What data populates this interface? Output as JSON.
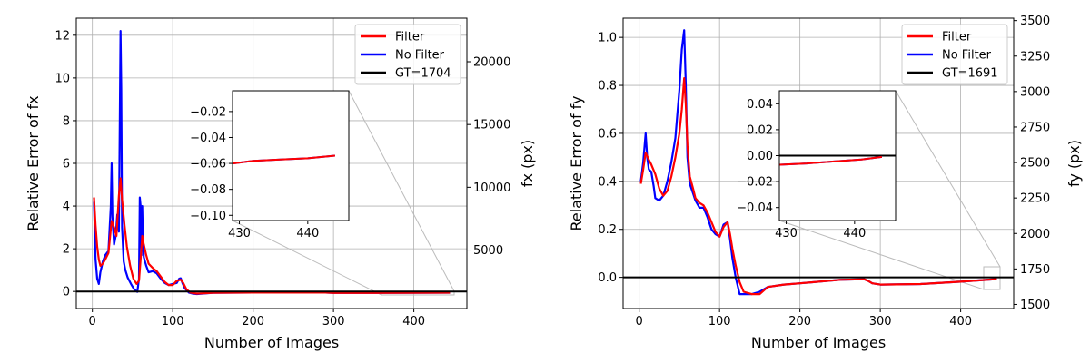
{
  "chart_data": [
    {
      "type": "line",
      "title": "",
      "xlabel": "Number of Images",
      "ylabel": "Relative Error of fx",
      "y2label": "fx (px)",
      "xlim": [
        -20,
        466
      ],
      "ylim": [
        -0.8,
        12.8
      ],
      "y2lim": [
        340,
        23470
      ],
      "xticks": [
        0,
        100,
        200,
        300,
        400
      ],
      "yticks": [
        0,
        2,
        4,
        6,
        8,
        10,
        12
      ],
      "y2ticks": [
        5000,
        10000,
        15000,
        20000
      ],
      "grid": true,
      "legend": "top-right",
      "gt_value": 0,
      "series": [
        {
          "name": "Filter",
          "color": "#ff0000",
          "x": [
            2,
            4,
            6,
            8,
            10,
            13,
            16,
            20,
            24,
            27,
            30,
            33,
            35,
            37,
            40,
            43,
            47,
            51,
            55,
            58,
            60,
            62,
            64,
            67,
            70,
            75,
            80,
            85,
            90,
            95,
            100,
            105,
            110,
            113,
            117,
            122,
            130,
            150,
            200,
            250,
            290,
            300,
            350,
            400,
            445
          ],
          "y": [
            4.4,
            3.1,
            2.1,
            1.5,
            1.2,
            1.3,
            1.5,
            1.8,
            3.3,
            3.0,
            2.6,
            4.5,
            5.3,
            4.3,
            3.1,
            2.1,
            1.2,
            0.6,
            0.35,
            0.5,
            1.5,
            2.6,
            2.2,
            1.7,
            1.3,
            1.1,
            0.95,
            0.7,
            0.45,
            0.3,
            0.3,
            0.5,
            0.55,
            0.4,
            0.1,
            -0.05,
            -0.1,
            -0.06,
            -0.05,
            -0.05,
            -0.05,
            -0.07,
            -0.07,
            -0.06,
            -0.055
          ]
        },
        {
          "name": "No Filter",
          "color": "#0000ff",
          "x": [
            2,
            4,
            6,
            8,
            10,
            13,
            16,
            20,
            23,
            24,
            25,
            27,
            29,
            31,
            33,
            35,
            36,
            37,
            39,
            41,
            44,
            48,
            52,
            56,
            58,
            59,
            60,
            61,
            62,
            63,
            64,
            67,
            70,
            75,
            80,
            85,
            90,
            95,
            100,
            105,
            108,
            110,
            112,
            115,
            120,
            125,
            130,
            150,
            200,
            250,
            290,
            300,
            350,
            400,
            445
          ],
          "y": [
            4.2,
            1.5,
            0.6,
            0.35,
            0.9,
            1.4,
            1.7,
            1.9,
            4.0,
            6.0,
            3.5,
            2.2,
            2.6,
            3.6,
            2.8,
            12.2,
            9.5,
            3.0,
            1.4,
            1.0,
            0.65,
            0.35,
            0.1,
            -0.02,
            0.6,
            4.4,
            4.0,
            1.7,
            4.0,
            2.4,
            1.6,
            1.2,
            0.9,
            0.95,
            0.85,
            0.6,
            0.4,
            0.3,
            0.35,
            0.4,
            0.6,
            0.62,
            0.4,
            0.15,
            -0.05,
            -0.1,
            -0.12,
            -0.06,
            -0.05,
            -0.05,
            -0.05,
            -0.07,
            -0.07,
            -0.06,
            -0.055
          ]
        },
        {
          "name": "GT=1704",
          "color": "#000000",
          "x": [
            -20,
            466
          ],
          "y": [
            0,
            0
          ]
        }
      ],
      "inset": {
        "xlim": [
          429,
          446
        ],
        "ylim": [
          -0.104,
          -0.004
        ],
        "xticks": [
          430,
          440
        ],
        "yticks": [
          -0.1,
          -0.08,
          -0.06,
          -0.04,
          -0.02
        ],
        "ytick_labels": [
          "−0.10",
          "−0.08",
          "−0.06",
          "−0.04",
          "−0.02"
        ],
        "series": [
          {
            "name": "No Filter",
            "color": "#0000ff",
            "x": [
              429,
              432,
              436,
              440,
              444
            ],
            "y": [
              -0.06,
              -0.058,
              -0.057,
              -0.056,
              -0.054
            ]
          },
          {
            "name": "Filter",
            "color": "#ff0000",
            "x": [
              429,
              432,
              436,
              440,
              444
            ],
            "y": [
              -0.06,
              -0.058,
              -0.057,
              -0.056,
              -0.054
            ]
          }
        ]
      }
    },
    {
      "type": "line",
      "title": "",
      "xlabel": "Number of Images",
      "ylabel": "Relative Error of fy",
      "y2label": "fy (px)",
      "xlim": [
        -20,
        466
      ],
      "ylim": [
        -0.13,
        1.08
      ],
      "y2lim": [
        1471,
        3517
      ],
      "xticks": [
        0,
        100,
        200,
        300,
        400
      ],
      "yticks": [
        0.0,
        0.2,
        0.4,
        0.6,
        0.8,
        1.0
      ],
      "y2ticks": [
        1500,
        1750,
        2000,
        2250,
        2500,
        2750,
        3000,
        3250,
        3500
      ],
      "grid": true,
      "legend": "top-right",
      "gt_value": 0,
      "series": [
        {
          "name": "Filter",
          "color": "#ff0000",
          "x": [
            2,
            5,
            8,
            12,
            15,
            20,
            25,
            30,
            35,
            40,
            45,
            50,
            53,
            56,
            58,
            60,
            63,
            67,
            70,
            75,
            80,
            85,
            90,
            95,
            100,
            105,
            110,
            113,
            116,
            120,
            125,
            130,
            140,
            150,
            160,
            180,
            200,
            250,
            280,
            285,
            290,
            300,
            350,
            400,
            445
          ],
          "y": [
            0.39,
            0.45,
            0.52,
            0.49,
            0.47,
            0.43,
            0.37,
            0.34,
            0.36,
            0.42,
            0.5,
            0.6,
            0.7,
            0.83,
            0.72,
            0.55,
            0.42,
            0.37,
            0.33,
            0.31,
            0.3,
            0.27,
            0.23,
            0.19,
            0.17,
            0.21,
            0.23,
            0.18,
            0.12,
            0.05,
            -0.02,
            -0.06,
            -0.07,
            -0.07,
            -0.04,
            -0.03,
            -0.025,
            -0.01,
            -0.008,
            -0.015,
            -0.025,
            -0.03,
            -0.028,
            -0.018,
            -0.007
          ]
        },
        {
          "name": "No Filter",
          "color": "#0000ff",
          "x": [
            2,
            5,
            8,
            10,
            12,
            15,
            18,
            20,
            25,
            30,
            35,
            40,
            45,
            50,
            53,
            56,
            58,
            60,
            63,
            67,
            70,
            75,
            80,
            85,
            90,
            95,
            100,
            105,
            110,
            113,
            116,
            120,
            125,
            130,
            140,
            150,
            160,
            180,
            200,
            250,
            280,
            285,
            290,
            300,
            350,
            400,
            445
          ],
          "y": [
            0.4,
            0.48,
            0.6,
            0.5,
            0.45,
            0.44,
            0.38,
            0.33,
            0.32,
            0.34,
            0.4,
            0.48,
            0.58,
            0.78,
            0.95,
            1.03,
            0.8,
            0.5,
            0.39,
            0.35,
            0.32,
            0.29,
            0.29,
            0.25,
            0.2,
            0.18,
            0.17,
            0.22,
            0.23,
            0.16,
            0.08,
            0.0,
            -0.07,
            -0.07,
            -0.07,
            -0.06,
            -0.04,
            -0.03,
            -0.025,
            -0.01,
            -0.008,
            -0.015,
            -0.025,
            -0.03,
            -0.028,
            -0.018,
            -0.007
          ]
        },
        {
          "name": "GT=1691",
          "color": "#000000",
          "x": [
            -20,
            466
          ],
          "y": [
            0,
            0
          ]
        }
      ],
      "inset": {
        "xlim": [
          429,
          446
        ],
        "ylim": [
          -0.05,
          0.05
        ],
        "xticks": [
          430,
          440
        ],
        "yticks": [
          -0.04,
          -0.02,
          0.0,
          0.02,
          0.04
        ],
        "ytick_labels": [
          "−0.04",
          "−0.02",
          "0.00",
          "0.02",
          "0.04"
        ],
        "gt_value": 0,
        "series": [
          {
            "name": "No Filter",
            "color": "#0000ff",
            "x": [
              429,
              433,
              437,
              441,
              444
            ],
            "y": [
              -0.007,
              -0.006,
              -0.0045,
              -0.003,
              -0.001
            ]
          },
          {
            "name": "Filter",
            "color": "#ff0000",
            "x": [
              429,
              433,
              437,
              441,
              444
            ],
            "y": [
              -0.007,
              -0.006,
              -0.0045,
              -0.003,
              -0.001
            ]
          }
        ]
      }
    }
  ]
}
